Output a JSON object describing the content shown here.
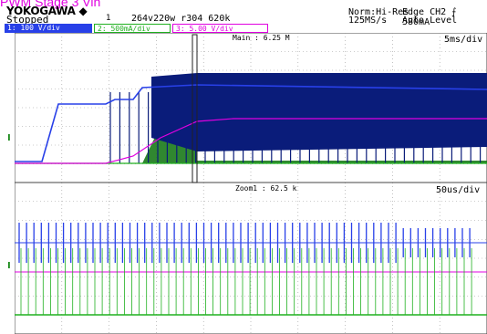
{
  "overlay_title": "PWM Stage 3 Vin",
  "header": {
    "brand": "YOKOGAWA ◆",
    "status": "Stopped",
    "marker": "1",
    "record": "264v220w r304 620k",
    "acq_mode": "Norm:Hi-Res",
    "sample_rate": "125MS/s",
    "trigger": "Edge CH2 ⨍ 580mA",
    "trigger_level": "Auto Level"
  },
  "channels": [
    {
      "label": "1: 100 V/div",
      "color": "#2840e8"
    },
    {
      "label": "2: 500mA/div",
      "color": "#20b020"
    },
    {
      "label": "3: 5.00 V/div",
      "color": "#e000e0"
    }
  ],
  "main": {
    "label": "Main : 6.25 M",
    "timebase": "5ms/div"
  },
  "zoom": {
    "label": "Zoom1 : 62.5 k",
    "timebase": "50us/div"
  },
  "ground_marker": "I",
  "colors": {
    "ch1": "#2840e8",
    "ch2": "#20b020",
    "ch3": "#e000e0",
    "ch1_fill": "#0a1c7a",
    "ch2_fill": "#1a7a1a",
    "grid": "#9a9a9a"
  }
}
